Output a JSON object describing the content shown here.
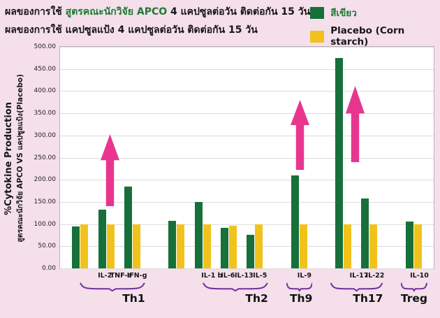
{
  "header": {
    "line1_prefix": "ผลของการใช้ ",
    "line1_highlight": "สูตรคณะนักวิจัย APCO",
    "line1_suffix": " 4 แคปซูลต่อวัน ติดต่อกัน 15 วัน",
    "line2": "ผลของการใช้ แคปซูลแป้ง 4 แคปซูลต่อวัน ติดต่อกัน 15 วัน",
    "legend": [
      {
        "label": "สีเขียว",
        "color": "#176f39",
        "text_color": "#1e7a33"
      },
      {
        "label": "Placebo (Corn starch)",
        "color": "#f2c21c",
        "text_color": "#161616"
      }
    ]
  },
  "chart_data": {
    "type": "bar",
    "title": "",
    "ylabel_line1": "%Cytokine Production",
    "ylabel_line2": "สูตรคณะนักวิจัย APCO VS แคปซูลแป้ง(Placebo)",
    "ylim": [
      0,
      500
    ],
    "yticks": [
      "0.00",
      "50.00",
      "100.00",
      "150.00",
      "200.00",
      "250.00",
      "300.00",
      "350.00",
      "400.00",
      "450.00",
      "500.00"
    ],
    "series": [
      {
        "name": "APCO (green)",
        "color": "#176f39"
      },
      {
        "name": "Placebo (Corn starch)",
        "color": "#f2c21c"
      }
    ],
    "groups": [
      {
        "label": "Th1",
        "bars": [
          {
            "name": "IL-2",
            "apco": 95,
            "placebo": 100
          },
          {
            "name": "TNF-a",
            "apco": 133,
            "placebo": 100
          },
          {
            "name": "IFN-g",
            "apco": 185,
            "placebo": 100
          }
        ]
      },
      {
        "label": "Th2",
        "bars": [
          {
            "name": "IL-1 b",
            "apco": 107,
            "placebo": 100
          },
          {
            "name": "IL-6",
            "apco": 150,
            "placebo": 100
          },
          {
            "name": "IL-13",
            "apco": 92,
            "placebo": 97
          },
          {
            "name": "IL-5",
            "apco": 75,
            "placebo": 100
          }
        ]
      },
      {
        "label": "Th9",
        "bars": [
          {
            "name": "IL-9",
            "apco": 210,
            "placebo": 100
          }
        ]
      },
      {
        "label": "Th17",
        "bars": [
          {
            "name": "IL-17",
            "apco": 475,
            "placebo": 100
          },
          {
            "name": "IL-22",
            "apco": 157,
            "placebo": 100
          }
        ]
      },
      {
        "label": "Treg",
        "bars": [
          {
            "name": "IL-10",
            "apco": 105,
            "placebo": 100
          }
        ]
      }
    ],
    "annotations": [
      {
        "type": "up-arrow",
        "at": "TNF-a",
        "from": 140,
        "to": 303,
        "dx": 4
      },
      {
        "type": "up-arrow",
        "at": "IL-9",
        "from": 222,
        "to": 380,
        "dx": 0
      },
      {
        "type": "up-arrow",
        "at": "IL-17",
        "from": 240,
        "to": 412,
        "dx": 16
      }
    ],
    "arrow_color": "#e8368f",
    "brace_color": "#7030a0",
    "legend_position": "top-right",
    "grid": true
  }
}
